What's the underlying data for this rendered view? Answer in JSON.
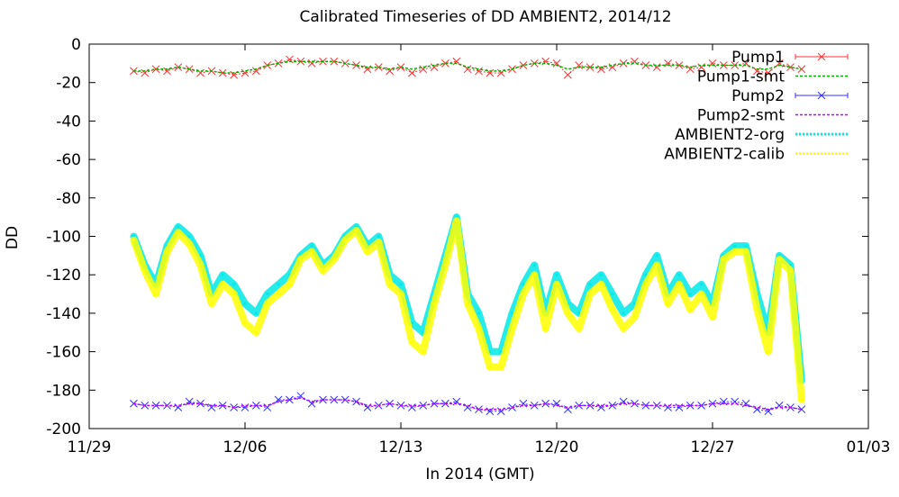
{
  "chart_data": {
    "type": "line",
    "title": "Calibrated Timeseries of DD AMBIENT2, 2014/12",
    "xlabel": "In 2014 (GMT)",
    "ylabel": "DD",
    "xlim": [
      "2014-11-29",
      "2015-01-03"
    ],
    "ylim": [
      -200,
      0
    ],
    "x_ticks": [
      "11/29",
      "12/06",
      "12/13",
      "12/20",
      "12/27",
      "01/03"
    ],
    "y_ticks": [
      0,
      -20,
      -40,
      -60,
      -80,
      -100,
      -120,
      -140,
      -160,
      -180,
      -200
    ],
    "grid": false,
    "legend_position": "top-right",
    "series": [
      {
        "name": "Pump1",
        "color": "#ff3030",
        "marker": "x",
        "x": [
          "2014-12-01",
          "2014-12-01.5",
          "2014-12-02",
          "2014-12-02.5",
          "2014-12-03",
          "2014-12-03.5",
          "2014-12-04",
          "2014-12-04.5",
          "2014-12-05",
          "2014-12-05.5",
          "2014-12-06",
          "2014-12-06.5",
          "2014-12-07",
          "2014-12-07.5",
          "2014-12-08",
          "2014-12-08.5",
          "2014-12-09",
          "2014-12-09.5",
          "2014-12-10",
          "2014-12-10.5",
          "2014-12-11",
          "2014-12-11.5",
          "2014-12-12",
          "2014-12-12.5",
          "2014-12-13",
          "2014-12-13.5",
          "2014-12-14",
          "2014-12-14.5",
          "2014-12-15",
          "2014-12-15.5",
          "2014-12-16",
          "2014-12-16.5",
          "2014-12-17",
          "2014-12-17.5",
          "2014-12-18",
          "2014-12-18.5",
          "2014-12-19",
          "2014-12-19.5",
          "2014-12-20",
          "2014-12-20.5",
          "2014-12-21",
          "2014-12-21.5",
          "2014-12-22",
          "2014-12-22.5",
          "2014-12-23",
          "2014-12-23.5",
          "2014-12-24",
          "2014-12-24.5",
          "2014-12-25",
          "2014-12-25.5",
          "2014-12-26",
          "2014-12-26.5",
          "2014-12-27",
          "2014-12-27.5",
          "2014-12-28",
          "2014-12-28.5",
          "2014-12-29",
          "2014-12-29.5",
          "2014-12-30",
          "2014-12-30.5",
          "2014-12-31"
        ],
        "values": [
          -14,
          -15,
          -13,
          -14,
          -12,
          -13,
          -15,
          -14,
          -15,
          -16,
          -15,
          -14,
          -11,
          -10,
          -8,
          -9,
          -10,
          -9,
          -9,
          -10,
          -11,
          -13,
          -12,
          -14,
          -12,
          -15,
          -13,
          -12,
          -10,
          -9,
          -13,
          -14,
          -15,
          -15,
          -13,
          -11,
          -10,
          -9,
          -10,
          -16,
          -11,
          -12,
          -13,
          -12,
          -10,
          -9,
          -11,
          -12,
          -10,
          -11,
          -13,
          -12,
          -10,
          -11,
          -11,
          -10,
          -14,
          -15,
          -10,
          -12,
          -13
        ]
      },
      {
        "name": "Pump1-smt",
        "color": "#00b000",
        "marker": "none",
        "x": [
          "2014-12-01",
          "2014-12-01.5",
          "2014-12-02",
          "2014-12-02.5",
          "2014-12-03",
          "2014-12-03.5",
          "2014-12-04",
          "2014-12-04.5",
          "2014-12-05",
          "2014-12-05.5",
          "2014-12-06",
          "2014-12-06.5",
          "2014-12-07",
          "2014-12-07.5",
          "2014-12-08",
          "2014-12-08.5",
          "2014-12-09",
          "2014-12-09.5",
          "2014-12-10",
          "2014-12-10.5",
          "2014-12-11",
          "2014-12-11.5",
          "2014-12-12",
          "2014-12-12.5",
          "2014-12-13",
          "2014-12-13.5",
          "2014-12-14",
          "2014-12-14.5",
          "2014-12-15",
          "2014-12-15.5",
          "2014-12-16",
          "2014-12-16.5",
          "2014-12-17",
          "2014-12-17.5",
          "2014-12-18",
          "2014-12-18.5",
          "2014-12-19",
          "2014-12-19.5",
          "2014-12-20",
          "2014-12-20.5",
          "2014-12-21",
          "2014-12-21.5",
          "2014-12-22",
          "2014-12-22.5",
          "2014-12-23",
          "2014-12-23.5",
          "2014-12-24",
          "2014-12-24.5",
          "2014-12-25",
          "2014-12-25.5",
          "2014-12-26",
          "2014-12-26.5",
          "2014-12-27",
          "2014-12-27.5",
          "2014-12-28",
          "2014-12-28.5",
          "2014-12-29",
          "2014-12-29.5",
          "2014-12-30",
          "2014-12-30.5",
          "2014-12-31"
        ],
        "values": [
          -14,
          -14,
          -13,
          -13,
          -12,
          -13,
          -14,
          -14,
          -15,
          -15,
          -14,
          -13,
          -11,
          -10,
          -9,
          -9,
          -9,
          -9,
          -9,
          -10,
          -11,
          -12,
          -12,
          -13,
          -12,
          -13,
          -12,
          -11,
          -10,
          -10,
          -12,
          -13,
          -14,
          -14,
          -13,
          -11,
          -10,
          -10,
          -11,
          -13,
          -12,
          -12,
          -12,
          -11,
          -10,
          -10,
          -11,
          -11,
          -11,
          -11,
          -12,
          -11,
          -11,
          -11,
          -11,
          -11,
          -13,
          -13,
          -11,
          -12,
          -13
        ]
      },
      {
        "name": "Pump2",
        "color": "#3030ff",
        "marker": "x",
        "x": [
          "2014-12-01",
          "2014-12-01.5",
          "2014-12-02",
          "2014-12-02.5",
          "2014-12-03",
          "2014-12-03.5",
          "2014-12-04",
          "2014-12-04.5",
          "2014-12-05",
          "2014-12-05.5",
          "2014-12-06",
          "2014-12-06.5",
          "2014-12-07",
          "2014-12-07.5",
          "2014-12-08",
          "2014-12-08.5",
          "2014-12-09",
          "2014-12-09.5",
          "2014-12-10",
          "2014-12-10.5",
          "2014-12-11",
          "2014-12-11.5",
          "2014-12-12",
          "2014-12-12.5",
          "2014-12-13",
          "2014-12-13.5",
          "2014-12-14",
          "2014-12-14.5",
          "2014-12-15",
          "2014-12-15.5",
          "2014-12-16",
          "2014-12-16.5",
          "2014-12-17",
          "2014-12-17.5",
          "2014-12-18",
          "2014-12-18.5",
          "2014-12-19",
          "2014-12-19.5",
          "2014-12-20",
          "2014-12-20.5",
          "2014-12-21",
          "2014-12-21.5",
          "2014-12-22",
          "2014-12-22.5",
          "2014-12-23",
          "2014-12-23.5",
          "2014-12-24",
          "2014-12-24.5",
          "2014-12-25",
          "2014-12-25.5",
          "2014-12-26",
          "2014-12-26.5",
          "2014-12-27",
          "2014-12-27.5",
          "2014-12-28",
          "2014-12-28.5",
          "2014-12-29",
          "2014-12-29.5",
          "2014-12-30",
          "2014-12-30.5",
          "2014-12-31"
        ],
        "values": [
          -187,
          -188,
          -188,
          -188,
          -189,
          -186,
          -187,
          -189,
          -188,
          -189,
          -189,
          -188,
          -189,
          -185,
          -185,
          -183,
          -187,
          -185,
          -185,
          -185,
          -186,
          -189,
          -188,
          -187,
          -188,
          -189,
          -188,
          -187,
          -187,
          -186,
          -189,
          -190,
          -191,
          -191,
          -189,
          -187,
          -188,
          -187,
          -187,
          -190,
          -188,
          -188,
          -189,
          -188,
          -186,
          -187,
          -188,
          -188,
          -189,
          -189,
          -188,
          -188,
          -187,
          -186,
          -186,
          -187,
          -190,
          -191,
          -188,
          -189,
          -190
        ]
      },
      {
        "name": "Pump2-smt",
        "color": "#c000ff",
        "marker": "none",
        "x": [
          "2014-12-01",
          "2014-12-01.5",
          "2014-12-02",
          "2014-12-02.5",
          "2014-12-03",
          "2014-12-03.5",
          "2014-12-04",
          "2014-12-04.5",
          "2014-12-05",
          "2014-12-05.5",
          "2014-12-06",
          "2014-12-06.5",
          "2014-12-07",
          "2014-12-07.5",
          "2014-12-08",
          "2014-12-08.5",
          "2014-12-09",
          "2014-12-09.5",
          "2014-12-10",
          "2014-12-10.5",
          "2014-12-11",
          "2014-12-11.5",
          "2014-12-12",
          "2014-12-12.5",
          "2014-12-13",
          "2014-12-13.5",
          "2014-12-14",
          "2014-12-14.5",
          "2014-12-15",
          "2014-12-15.5",
          "2014-12-16",
          "2014-12-16.5",
          "2014-12-17",
          "2014-12-17.5",
          "2014-12-18",
          "2014-12-18.5",
          "2014-12-19",
          "2014-12-19.5",
          "2014-12-20",
          "2014-12-20.5",
          "2014-12-21",
          "2014-12-21.5",
          "2014-12-22",
          "2014-12-22.5",
          "2014-12-23",
          "2014-12-23.5",
          "2014-12-24",
          "2014-12-24.5",
          "2014-12-25",
          "2014-12-25.5",
          "2014-12-26",
          "2014-12-26.5",
          "2014-12-27",
          "2014-12-27.5",
          "2014-12-28",
          "2014-12-28.5",
          "2014-12-29",
          "2014-12-29.5",
          "2014-12-30",
          "2014-12-30.5",
          "2014-12-31"
        ],
        "values": [
          -187,
          -188,
          -188,
          -188,
          -188,
          -187,
          -187,
          -188,
          -188,
          -189,
          -188,
          -188,
          -188,
          -186,
          -185,
          -184,
          -186,
          -185,
          -185,
          -185,
          -186,
          -188,
          -188,
          -187,
          -188,
          -188,
          -188,
          -187,
          -187,
          -187,
          -188,
          -190,
          -190,
          -190,
          -189,
          -188,
          -188,
          -187,
          -188,
          -189,
          -188,
          -188,
          -188,
          -188,
          -187,
          -187,
          -188,
          -188,
          -188,
          -188,
          -188,
          -188,
          -187,
          -187,
          -187,
          -188,
          -189,
          -190,
          -189,
          -189,
          -190
        ]
      },
      {
        "name": "AMBIENT2-org",
        "color": "#00e8e8",
        "marker": "point",
        "x": [
          "2014-12-01",
          "2014-12-01.5",
          "2014-12-02",
          "2014-12-02.5",
          "2014-12-03",
          "2014-12-03.5",
          "2014-12-04",
          "2014-12-04.5",
          "2014-12-05",
          "2014-12-05.5",
          "2014-12-06",
          "2014-12-06.5",
          "2014-12-07",
          "2014-12-07.5",
          "2014-12-08",
          "2014-12-08.5",
          "2014-12-09",
          "2014-12-09.5",
          "2014-12-10",
          "2014-12-10.5",
          "2014-12-11",
          "2014-12-11.5",
          "2014-12-12",
          "2014-12-12.5",
          "2014-12-13",
          "2014-12-13.5",
          "2014-12-14",
          "2014-12-14.5",
          "2014-12-15",
          "2014-12-15.5",
          "2014-12-16",
          "2014-12-16.5",
          "2014-12-17",
          "2014-12-17.5",
          "2014-12-18",
          "2014-12-18.5",
          "2014-12-19",
          "2014-12-19.5",
          "2014-12-20",
          "2014-12-20.5",
          "2014-12-21",
          "2014-12-21.5",
          "2014-12-22",
          "2014-12-22.5",
          "2014-12-23",
          "2014-12-23.5",
          "2014-12-24",
          "2014-12-24.5",
          "2014-12-25",
          "2014-12-25.5",
          "2014-12-26",
          "2014-12-26.5",
          "2014-12-27",
          "2014-12-27.5",
          "2014-12-28",
          "2014-12-28.5",
          "2014-12-29",
          "2014-12-29.5",
          "2014-12-30",
          "2014-12-30.5",
          "2014-12-31"
        ],
        "values": [
          -100,
          -115,
          -125,
          -105,
          -95,
          -100,
          -110,
          -130,
          -120,
          -125,
          -135,
          -140,
          -130,
          -125,
          -120,
          -110,
          -105,
          -115,
          -110,
          -100,
          -95,
          -105,
          -100,
          -120,
          -125,
          -145,
          -150,
          -130,
          -110,
          -90,
          -130,
          -140,
          -160,
          -160,
          -140,
          -125,
          -115,
          -140,
          -120,
          -135,
          -140,
          -125,
          -120,
          -130,
          -140,
          -135,
          -120,
          -110,
          -130,
          -120,
          -130,
          -125,
          -135,
          -110,
          -105,
          -105,
          -130,
          -150,
          -110,
          -115,
          -175
        ]
      },
      {
        "name": "AMBIENT2-calib",
        "color": "#ffff00",
        "marker": "point",
        "x": [
          "2014-12-01",
          "2014-12-01.5",
          "2014-12-02",
          "2014-12-02.5",
          "2014-12-03",
          "2014-12-03.5",
          "2014-12-04",
          "2014-12-04.5",
          "2014-12-05",
          "2014-12-05.5",
          "2014-12-06",
          "2014-12-06.5",
          "2014-12-07",
          "2014-12-07.5",
          "2014-12-08",
          "2014-12-08.5",
          "2014-12-09",
          "2014-12-09.5",
          "2014-12-10",
          "2014-12-10.5",
          "2014-12-11",
          "2014-12-11.5",
          "2014-12-12",
          "2014-12-12.5",
          "2014-12-13",
          "2014-12-13.5",
          "2014-12-14",
          "2014-12-14.5",
          "2014-12-15",
          "2014-12-15.5",
          "2014-12-16",
          "2014-12-16.5",
          "2014-12-17",
          "2014-12-17.5",
          "2014-12-18",
          "2014-12-18.5",
          "2014-12-19",
          "2014-12-19.5",
          "2014-12-20",
          "2014-12-20.5",
          "2014-12-21",
          "2014-12-21.5",
          "2014-12-22",
          "2014-12-22.5",
          "2014-12-23",
          "2014-12-23.5",
          "2014-12-24",
          "2014-12-24.5",
          "2014-12-25",
          "2014-12-25.5",
          "2014-12-26",
          "2014-12-26.5",
          "2014-12-27",
          "2014-12-27.5",
          "2014-12-28",
          "2014-12-28.5",
          "2014-12-29",
          "2014-12-29.5",
          "2014-12-30",
          "2014-12-30.5",
          "2014-12-31"
        ],
        "values": [
          -102,
          -118,
          -130,
          -108,
          -98,
          -104,
          -115,
          -135,
          -125,
          -130,
          -145,
          -150,
          -135,
          -130,
          -125,
          -112,
          -108,
          -118,
          -112,
          -102,
          -97,
          -108,
          -103,
          -125,
          -130,
          -155,
          -160,
          -135,
          -115,
          -92,
          -135,
          -148,
          -168,
          -168,
          -148,
          -130,
          -120,
          -148,
          -125,
          -140,
          -148,
          -130,
          -125,
          -138,
          -148,
          -142,
          -125,
          -115,
          -135,
          -125,
          -138,
          -130,
          -142,
          -112,
          -108,
          -108,
          -138,
          -160,
          -112,
          -118,
          -185
        ]
      }
    ]
  }
}
